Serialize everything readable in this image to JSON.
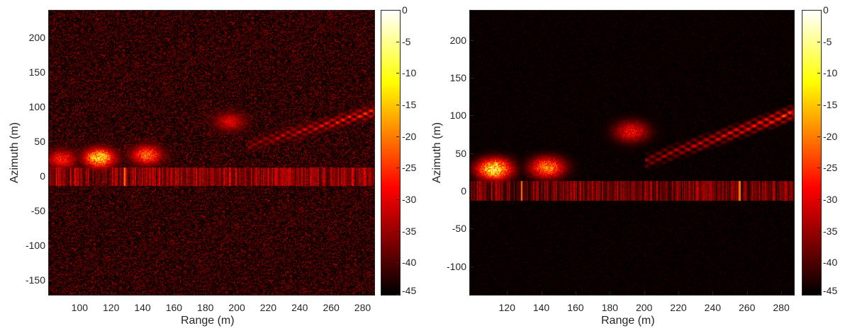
{
  "chart_data": [
    {
      "type": "heatmap",
      "xlabel": "Range (m)",
      "ylabel": "Azimuth (m)",
      "xlim": [
        80,
        287
      ],
      "ylim": [
        -170,
        240
      ],
      "xticks": [
        100,
        120,
        140,
        160,
        180,
        200,
        220,
        240,
        260,
        280
      ],
      "yticks": [
        200,
        150,
        100,
        50,
        0,
        -50,
        -100,
        -150
      ],
      "colorbar": {
        "lim": [
          -45,
          0
        ],
        "ticks": [
          0,
          -5,
          -10,
          -15,
          -20,
          -25,
          -30,
          -35,
          -40,
          -45
        ],
        "colormap": "hot"
      },
      "features": {
        "background_noise": "high",
        "blobs": [
          {
            "x": 112,
            "y": 28,
            "level": 0.9
          },
          {
            "x": 142,
            "y": 32,
            "level": 0.65
          },
          {
            "x": 88,
            "y": 26,
            "level": 0.5
          },
          {
            "x": 195,
            "y": 80,
            "level": 0.4
          }
        ],
        "streak_band": {
          "y": [
            -12,
            14
          ],
          "x": [
            80,
            287
          ]
        },
        "bright_columns": [
          128
        ],
        "diagonal_arc": {
          "from": [
            205,
            45
          ],
          "to": [
            287,
            95
          ]
        }
      }
    },
    {
      "type": "heatmap",
      "xlabel": "Range (m)",
      "ylabel": "Azimuth (m)",
      "xlim": [
        98,
        287
      ],
      "ylim": [
        -137,
        240
      ],
      "xticks": [
        120,
        140,
        160,
        180,
        200,
        220,
        240,
        260,
        280
      ],
      "yticks": [
        200,
        150,
        100,
        50,
        0,
        -50,
        -100
      ],
      "colorbar": {
        "lim": [
          -45,
          0
        ],
        "ticks": [
          0,
          -5,
          -10,
          -15,
          -20,
          -25,
          -30,
          -35,
          -40,
          -45
        ],
        "colormap": "hot"
      },
      "features": {
        "background_noise": "low",
        "blobs": [
          {
            "x": 112,
            "y": 30,
            "level": 0.95
          },
          {
            "x": 143,
            "y": 32,
            "level": 0.7
          },
          {
            "x": 192,
            "y": 80,
            "level": 0.45
          }
        ],
        "streak_band": {
          "y": [
            -12,
            14
          ],
          "x": [
            98,
            287
          ]
        },
        "bright_columns": [
          128,
          255
        ],
        "diagonal_arc": {
          "from": [
            200,
            40
          ],
          "to": [
            287,
            105
          ]
        }
      }
    }
  ]
}
